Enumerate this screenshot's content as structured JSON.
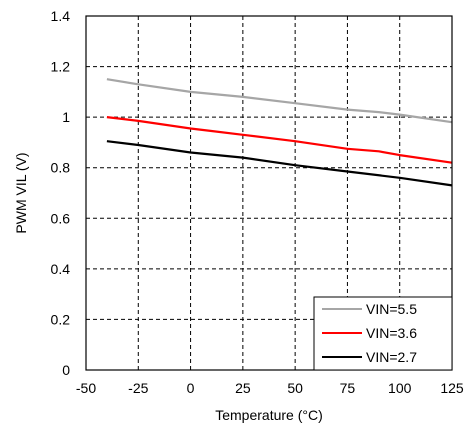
{
  "chart_data": {
    "type": "line",
    "title": "",
    "xlabel": "Temperature (°C)",
    "ylabel": "PWM VIL (V)",
    "xlim": [
      -50,
      125
    ],
    "ylim": [
      0,
      1.4
    ],
    "xticks": [
      -50,
      -25,
      0,
      25,
      50,
      75,
      100,
      125
    ],
    "yticks": [
      0,
      0.2,
      0.4,
      0.6,
      0.8,
      1,
      1.2,
      1.4
    ],
    "ytick_labels": [
      "0",
      "0.2",
      "0.4",
      "0.6",
      "0.8",
      "1",
      "1.2",
      "1.4"
    ],
    "grid": true,
    "legend_position": "bottom-right",
    "series": [
      {
        "name": "VIN=5.5",
        "color": "#a6a6a6",
        "x": [
          -40,
          -25,
          0,
          25,
          50,
          75,
          90,
          100,
          125
        ],
        "y": [
          1.15,
          1.13,
          1.1,
          1.08,
          1.055,
          1.03,
          1.02,
          1.01,
          0.98
        ]
      },
      {
        "name": "VIN=3.6",
        "color": "#ff0000",
        "x": [
          -40,
          -25,
          0,
          10,
          25,
          50,
          75,
          90,
          100,
          125
        ],
        "y": [
          1.0,
          0.985,
          0.955,
          0.945,
          0.93,
          0.905,
          0.875,
          0.865,
          0.85,
          0.82
        ]
      },
      {
        "name": "VIN=2.7",
        "color": "#000000",
        "x": [
          -40,
          -25,
          0,
          25,
          50,
          75,
          100,
          125
        ],
        "y": [
          0.905,
          0.89,
          0.86,
          0.84,
          0.81,
          0.785,
          0.76,
          0.73
        ]
      }
    ]
  }
}
